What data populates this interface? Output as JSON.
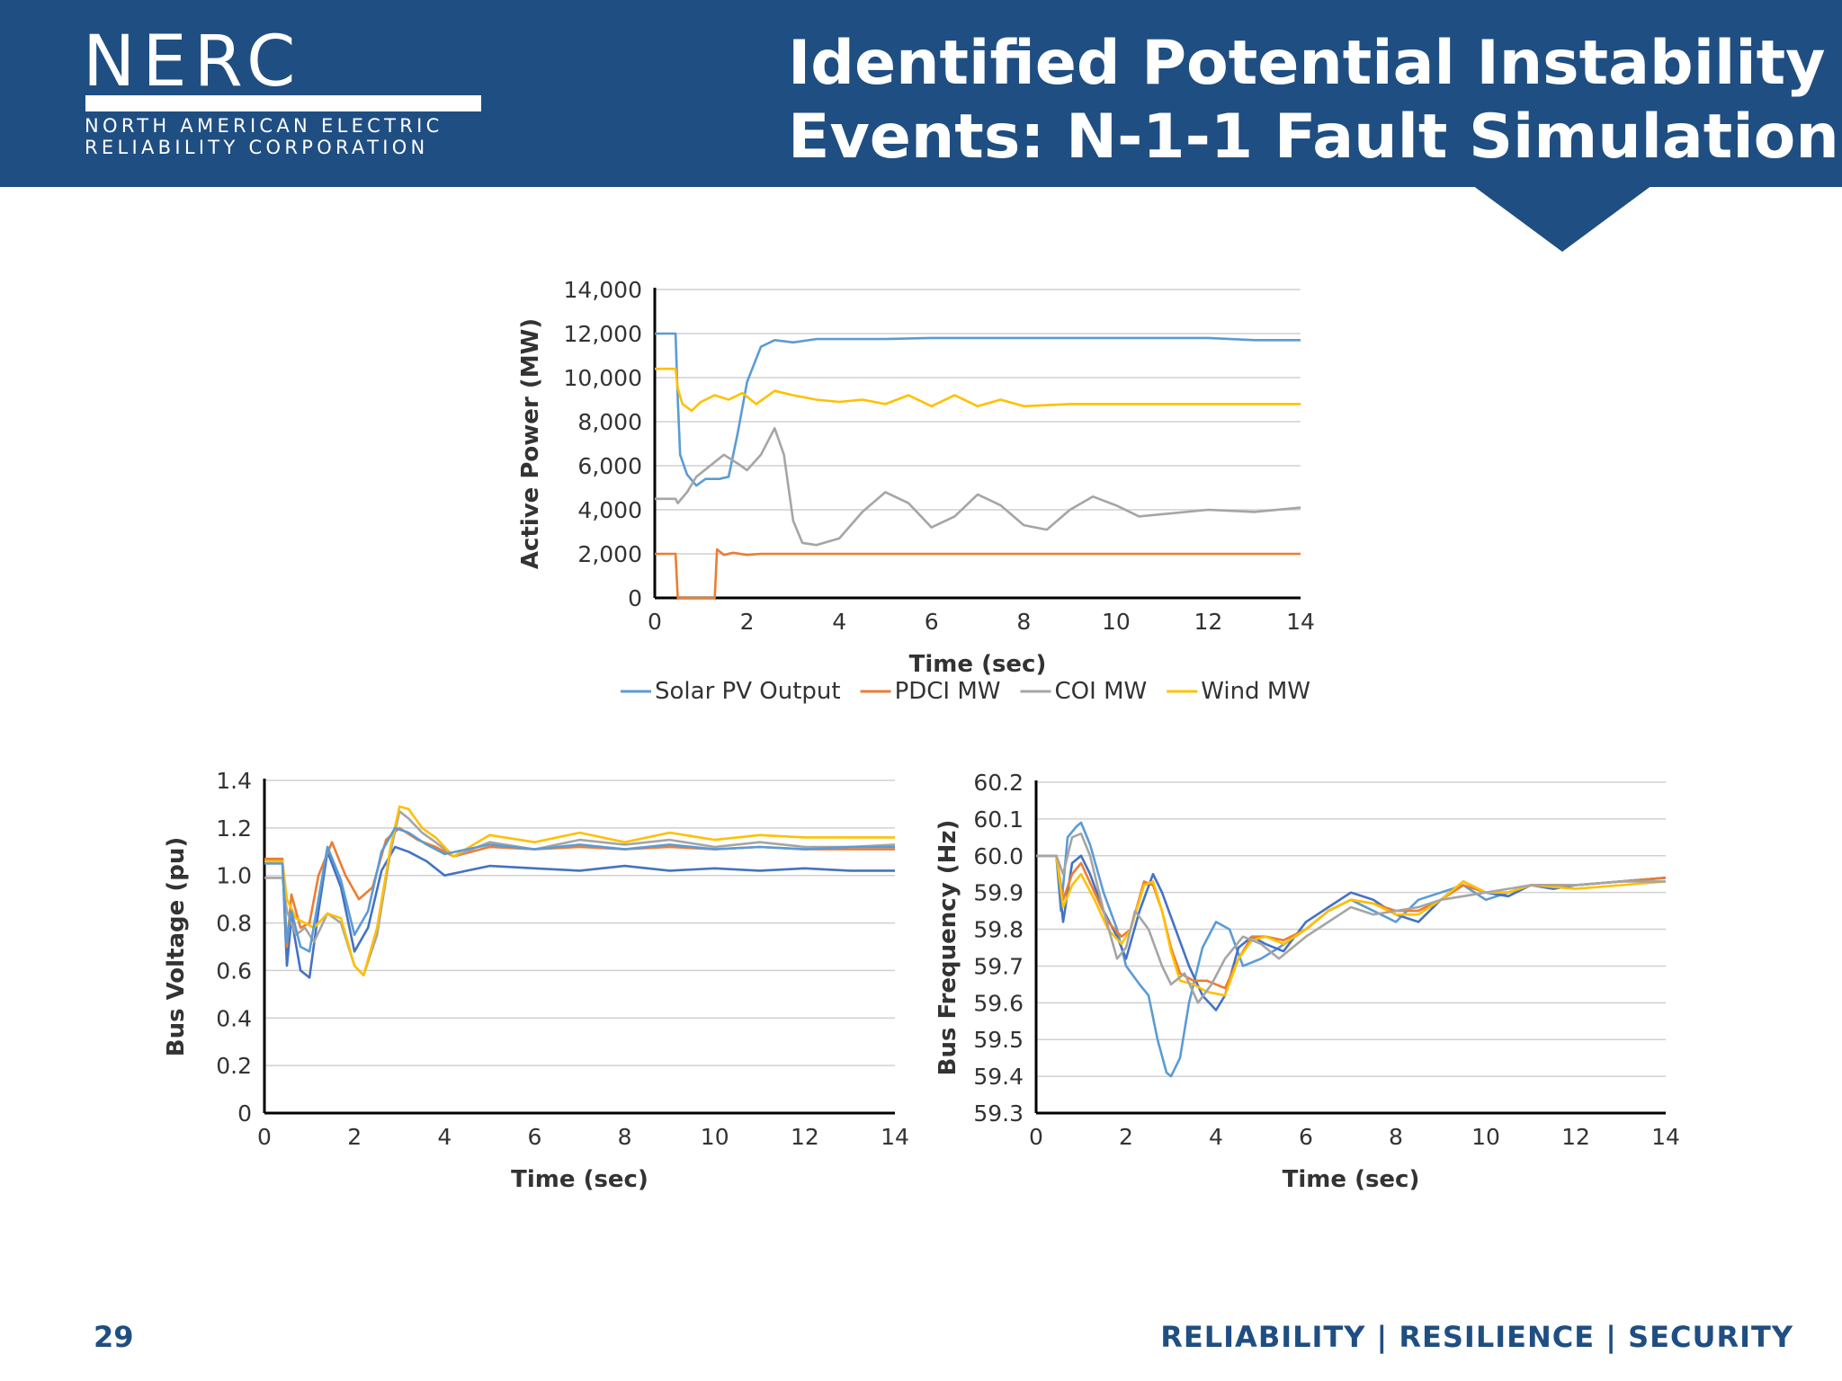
{
  "header": {
    "logo": {
      "wordmark": "NERC",
      "sub_line1": "NORTH AMERICAN ELECTRIC",
      "sub_line2": "RELIABILITY CORPORATION"
    },
    "title_line1": "Identified Potential Instability",
    "title_line2": "Events: N-1-1 Fault Simulation",
    "color": "#1f4e82"
  },
  "footer": {
    "page_number": "29",
    "tagline": "RELIABILITY | RESILIENCE | SECURITY"
  },
  "chart_data": [
    {
      "type": "line",
      "xlabel": "Time (sec)",
      "ylabel": "Active Power (MW)",
      "xlim": [
        0,
        14
      ],
      "ylim": [
        0,
        14000
      ],
      "xticks": [
        0,
        2,
        4,
        6,
        8,
        10,
        12,
        14
      ],
      "xtick_labels": [
        "0",
        "2",
        "4",
        "6",
        "8",
        "10",
        "12",
        "14"
      ],
      "yticks": [
        0,
        2000,
        4000,
        6000,
        8000,
        10000,
        12000,
        14000
      ],
      "ytick_labels": [
        "0",
        "2,000",
        "4,000",
        "6,000",
        "8,000",
        "10,000",
        "12,000",
        "14,000"
      ],
      "legend": "bottom",
      "grid": true,
      "series": [
        {
          "name": "Solar PV Output",
          "color": "#5b9bd5",
          "x": [
            0,
            0.45,
            0.5,
            0.55,
            0.7,
            0.9,
            1.1,
            1.4,
            1.6,
            1.8,
            2.0,
            2.3,
            2.6,
            3.0,
            3.5,
            5,
            6,
            8,
            10,
            12,
            13,
            14
          ],
          "y": [
            12000,
            12000,
            9000,
            6500,
            5600,
            5100,
            5400,
            5400,
            5500,
            7500,
            9800,
            11400,
            11700,
            11600,
            11750,
            11750,
            11800,
            11800,
            11800,
            11800,
            11700,
            11700
          ]
        },
        {
          "name": "PDCI MW",
          "color": "#ed7d31",
          "x": [
            0,
            0.45,
            0.5,
            1.3,
            1.35,
            1.5,
            1.7,
            2.0,
            2.3,
            3,
            6,
            10,
            14
          ],
          "y": [
            2000,
            2000,
            0,
            0,
            2200,
            1950,
            2050,
            1950,
            2000,
            2000,
            2000,
            2000,
            2000
          ]
        },
        {
          "name": "COI MW",
          "color": "#a5a5a5",
          "x": [
            0,
            0.45,
            0.5,
            0.7,
            0.9,
            1.2,
            1.5,
            1.8,
            2.0,
            2.3,
            2.6,
            2.8,
            3.0,
            3.2,
            3.5,
            4.0,
            4.5,
            5.0,
            5.5,
            6.0,
            6.5,
            7.0,
            7.5,
            8.0,
            8.5,
            9.0,
            9.5,
            10.0,
            10.5,
            11.0,
            12,
            13,
            14
          ],
          "y": [
            4500,
            4500,
            4300,
            4800,
            5500,
            6000,
            6500,
            6100,
            5800,
            6500,
            7700,
            6500,
            3500,
            2500,
            2400,
            2700,
            3900,
            4800,
            4300,
            3200,
            3700,
            4700,
            4200,
            3300,
            3100,
            4000,
            4600,
            4200,
            3700,
            3800,
            4000,
            3900,
            4100
          ]
        },
        {
          "name": "Wind MW",
          "color": "#ffc000",
          "x": [
            0,
            0.45,
            0.5,
            0.6,
            0.8,
            1.0,
            1.3,
            1.6,
            1.9,
            2.2,
            2.6,
            3.0,
            3.5,
            4.0,
            4.5,
            5.0,
            5.5,
            6.0,
            6.5,
            7.0,
            7.5,
            8.0,
            9,
            10,
            11,
            12,
            14
          ],
          "y": [
            10400,
            10400,
            9500,
            8800,
            8500,
            8900,
            9200,
            9000,
            9300,
            8800,
            9400,
            9200,
            9000,
            8900,
            9000,
            8800,
            9200,
            8700,
            9200,
            8700,
            9000,
            8700,
            8800,
            8800,
            8800,
            8800,
            8800
          ]
        }
      ]
    },
    {
      "type": "line",
      "xlabel": "Time (sec)",
      "ylabel": "Bus Voltage (pu)",
      "xlim": [
        0,
        14
      ],
      "ylim": [
        0,
        1.4
      ],
      "xticks": [
        0,
        2,
        4,
        6,
        8,
        10,
        12,
        14
      ],
      "xtick_labels": [
        "0",
        "2",
        "4",
        "6",
        "8",
        "10",
        "12",
        "14"
      ],
      "yticks": [
        0,
        0.2,
        0.4,
        0.6,
        0.8,
        1.0,
        1.2,
        1.4
      ],
      "ytick_labels": [
        "0",
        "0.2",
        "0.4",
        "0.6",
        "0.8",
        "1.0",
        "1.2",
        "1.4"
      ],
      "grid": true,
      "series": [
        {
          "color": "#4472c4",
          "x": [
            0,
            0.4,
            0.5,
            0.6,
            0.8,
            1.0,
            1.2,
            1.4,
            1.7,
            2.0,
            2.3,
            2.6,
            2.9,
            3.2,
            3.6,
            4.0,
            4.5,
            5.0,
            6,
            7,
            8,
            9,
            10,
            11,
            12,
            13,
            14
          ],
          "y": [
            1.06,
            1.06,
            0.62,
            0.82,
            0.6,
            0.57,
            0.85,
            1.1,
            0.95,
            0.68,
            0.78,
            1.02,
            1.12,
            1.1,
            1.06,
            1.0,
            1.02,
            1.04,
            1.03,
            1.02,
            1.04,
            1.02,
            1.03,
            1.02,
            1.03,
            1.02,
            1.02
          ]
        },
        {
          "color": "#ed7d31",
          "x": [
            0,
            0.4,
            0.5,
            0.6,
            0.8,
            1.0,
            1.2,
            1.5,
            1.8,
            2.1,
            2.4,
            2.7,
            3.0,
            3.4,
            3.8,
            4.2,
            5,
            6,
            7,
            8,
            9,
            10,
            11,
            12,
            13,
            14
          ],
          "y": [
            1.07,
            1.07,
            0.7,
            0.92,
            0.78,
            0.8,
            1.0,
            1.14,
            1.0,
            0.9,
            0.95,
            1.15,
            1.2,
            1.15,
            1.12,
            1.08,
            1.12,
            1.11,
            1.12,
            1.11,
            1.12,
            1.11,
            1.12,
            1.11,
            1.11,
            1.11
          ]
        },
        {
          "color": "#a5a5a5",
          "x": [
            0,
            0.4,
            0.5,
            0.7,
            0.9,
            1.1,
            1.4,
            1.7,
            2.0,
            2.2,
            2.5,
            2.8,
            3.0,
            3.2,
            3.5,
            3.8,
            4.2,
            5,
            6,
            7,
            8,
            9,
            10,
            11,
            12,
            13,
            14
          ],
          "y": [
            0.99,
            0.99,
            0.85,
            0.75,
            0.78,
            0.72,
            0.84,
            0.8,
            0.62,
            0.58,
            0.75,
            1.1,
            1.27,
            1.24,
            1.18,
            1.14,
            1.08,
            1.14,
            1.11,
            1.15,
            1.13,
            1.15,
            1.12,
            1.14,
            1.12,
            1.12,
            1.13
          ]
        },
        {
          "color": "#ffc000",
          "x": [
            0,
            0.4,
            0.5,
            0.7,
            0.9,
            1.1,
            1.4,
            1.7,
            2.0,
            2.2,
            2.5,
            2.8,
            3.0,
            3.2,
            3.5,
            3.8,
            4.2,
            5,
            6,
            7,
            8,
            9,
            10,
            11,
            12,
            13,
            14
          ],
          "y": [
            1.06,
            1.06,
            0.9,
            0.82,
            0.8,
            0.78,
            0.84,
            0.82,
            0.62,
            0.58,
            0.78,
            1.12,
            1.29,
            1.28,
            1.2,
            1.16,
            1.08,
            1.17,
            1.14,
            1.18,
            1.14,
            1.18,
            1.15,
            1.17,
            1.16,
            1.16,
            1.16
          ]
        },
        {
          "color": "#5b9bd5",
          "x": [
            0,
            0.4,
            0.5,
            0.6,
            0.8,
            1.0,
            1.2,
            1.4,
            1.7,
            2.0,
            2.3,
            2.6,
            2.9,
            3.2,
            3.6,
            4.0,
            4.5,
            5.0,
            6,
            7,
            8,
            9,
            10,
            11,
            12,
            13,
            14
          ],
          "y": [
            1.05,
            1.05,
            0.72,
            0.85,
            0.7,
            0.68,
            0.9,
            1.12,
            0.98,
            0.75,
            0.85,
            1.1,
            1.2,
            1.18,
            1.13,
            1.09,
            1.11,
            1.13,
            1.11,
            1.13,
            1.11,
            1.13,
            1.11,
            1.12,
            1.11,
            1.12,
            1.12
          ]
        }
      ]
    },
    {
      "type": "line",
      "xlabel": "Time (sec)",
      "ylabel": "Bus Frequency (Hz)",
      "xlim": [
        0,
        14
      ],
      "ylim": [
        59.3,
        60.2
      ],
      "xticks": [
        0,
        2,
        4,
        6,
        8,
        10,
        12,
        14
      ],
      "xtick_labels": [
        "0",
        "2",
        "4",
        "6",
        "8",
        "10",
        "12",
        "14"
      ],
      "yticks": [
        59.3,
        59.4,
        59.5,
        59.6,
        59.7,
        59.8,
        59.9,
        60.0,
        60.1,
        60.2
      ],
      "ytick_labels": [
        "59.3",
        "59.4",
        "59.5",
        "59.6",
        "59.7",
        "59.8",
        "59.9",
        "60.0",
        "60.1",
        "60.2"
      ],
      "grid": true,
      "series": [
        {
          "color": "#5b9bd5",
          "x": [
            0,
            0.45,
            0.55,
            0.7,
            0.9,
            1.0,
            1.2,
            1.5,
            1.8,
            2.0,
            2.3,
            2.5,
            2.7,
            2.9,
            3.0,
            3.2,
            3.4,
            3.7,
            4.0,
            4.3,
            4.6,
            5.0,
            5.4,
            6.0,
            6.5,
            7.0,
            7.5,
            8.0,
            8.5,
            9.0,
            9.5,
            10.0,
            10.5,
            11.0,
            11.5,
            12,
            13,
            14
          ],
          "y": [
            60.0,
            60.0,
            59.85,
            60.05,
            60.08,
            60.09,
            60.03,
            59.9,
            59.8,
            59.7,
            59.65,
            59.62,
            59.5,
            59.41,
            59.4,
            59.45,
            59.6,
            59.75,
            59.82,
            59.8,
            59.7,
            59.72,
            59.75,
            59.8,
            59.85,
            59.88,
            59.85,
            59.82,
            59.88,
            59.9,
            59.92,
            59.88,
            59.9,
            59.92,
            59.92,
            59.92,
            59.93,
            59.94
          ]
        },
        {
          "color": "#4472c4",
          "x": [
            0,
            0.45,
            0.6,
            0.8,
            1.0,
            1.2,
            1.5,
            1.8,
            2.0,
            2.3,
            2.6,
            2.8,
            3.1,
            3.4,
            3.7,
            4.0,
            4.2,
            4.5,
            4.8,
            5.1,
            5.5,
            6.0,
            6.5,
            7.0,
            7.5,
            8.0,
            8.5,
            9.0,
            9.5,
            10.0,
            10.5,
            11.0,
            11.5,
            12.0,
            13,
            14
          ],
          "y": [
            60.0,
            60.0,
            59.82,
            59.98,
            60.0,
            59.95,
            59.85,
            59.78,
            59.72,
            59.85,
            59.95,
            59.9,
            59.8,
            59.7,
            59.62,
            59.58,
            59.62,
            59.75,
            59.78,
            59.76,
            59.74,
            59.82,
            59.86,
            59.9,
            59.88,
            59.84,
            59.82,
            59.88,
            59.93,
            59.9,
            59.89,
            59.92,
            59.91,
            59.92,
            59.93,
            59.94
          ]
        },
        {
          "color": "#ed7d31",
          "x": [
            0,
            0.45,
            0.6,
            0.8,
            1.0,
            1.3,
            1.6,
            1.9,
            2.1,
            2.4,
            2.6,
            2.8,
            3.0,
            3.2,
            3.5,
            3.8,
            4.2,
            4.5,
            4.8,
            5.1,
            5.5,
            6.0,
            6.5,
            7.0,
            7.5,
            8.0,
            8.5,
            9.0,
            9.5,
            10.0,
            10.5,
            11.0,
            12,
            13,
            14
          ],
          "y": [
            60.0,
            60.0,
            59.88,
            59.95,
            59.98,
            59.9,
            59.82,
            59.78,
            59.8,
            59.93,
            59.92,
            59.85,
            59.75,
            59.68,
            59.66,
            59.66,
            59.64,
            59.72,
            59.78,
            59.78,
            59.77,
            59.8,
            59.85,
            59.88,
            59.87,
            59.85,
            59.85,
            59.88,
            59.92,
            59.9,
            59.9,
            59.92,
            59.92,
            59.93,
            59.94
          ]
        },
        {
          "color": "#ffc000",
          "x": [
            0,
            0.45,
            0.6,
            0.8,
            1.0,
            1.3,
            1.6,
            1.9,
            2.1,
            2.4,
            2.6,
            2.8,
            3.0,
            3.2,
            3.5,
            3.8,
            4.2,
            4.5,
            4.8,
            5.1,
            5.5,
            6.0,
            6.5,
            7.0,
            7.5,
            8.0,
            8.5,
            9.0,
            9.5,
            10.0,
            10.5,
            11.0,
            12,
            13,
            14
          ],
          "y": [
            60.0,
            60.0,
            59.86,
            59.92,
            59.95,
            59.88,
            59.8,
            59.76,
            59.8,
            59.92,
            59.93,
            59.85,
            59.74,
            59.66,
            59.65,
            59.63,
            59.62,
            59.72,
            59.77,
            59.78,
            59.76,
            59.8,
            59.85,
            59.88,
            59.87,
            59.84,
            59.84,
            59.88,
            59.93,
            59.9,
            59.9,
            59.92,
            59.91,
            59.92,
            59.93
          ]
        },
        {
          "color": "#a5a5a5",
          "x": [
            0,
            0.45,
            0.6,
            0.8,
            1.0,
            1.2,
            1.5,
            1.8,
            2.0,
            2.2,
            2.5,
            2.8,
            3.0,
            3.3,
            3.6,
            3.9,
            4.2,
            4.6,
            5.0,
            5.4,
            6.0,
            6.5,
            7.0,
            7.5,
            8.0,
            8.5,
            9.0,
            9.5,
            10.0,
            10.5,
            11.0,
            12,
            13,
            14
          ],
          "y": [
            60.0,
            60.0,
            59.95,
            60.05,
            60.06,
            60.0,
            59.85,
            59.72,
            59.75,
            59.85,
            59.8,
            59.7,
            59.65,
            59.68,
            59.6,
            59.65,
            59.72,
            59.78,
            59.76,
            59.72,
            59.78,
            59.82,
            59.86,
            59.84,
            59.85,
            59.86,
            59.88,
            59.89,
            59.9,
            59.91,
            59.92,
            59.92,
            59.93,
            59.93
          ]
        }
      ]
    }
  ]
}
